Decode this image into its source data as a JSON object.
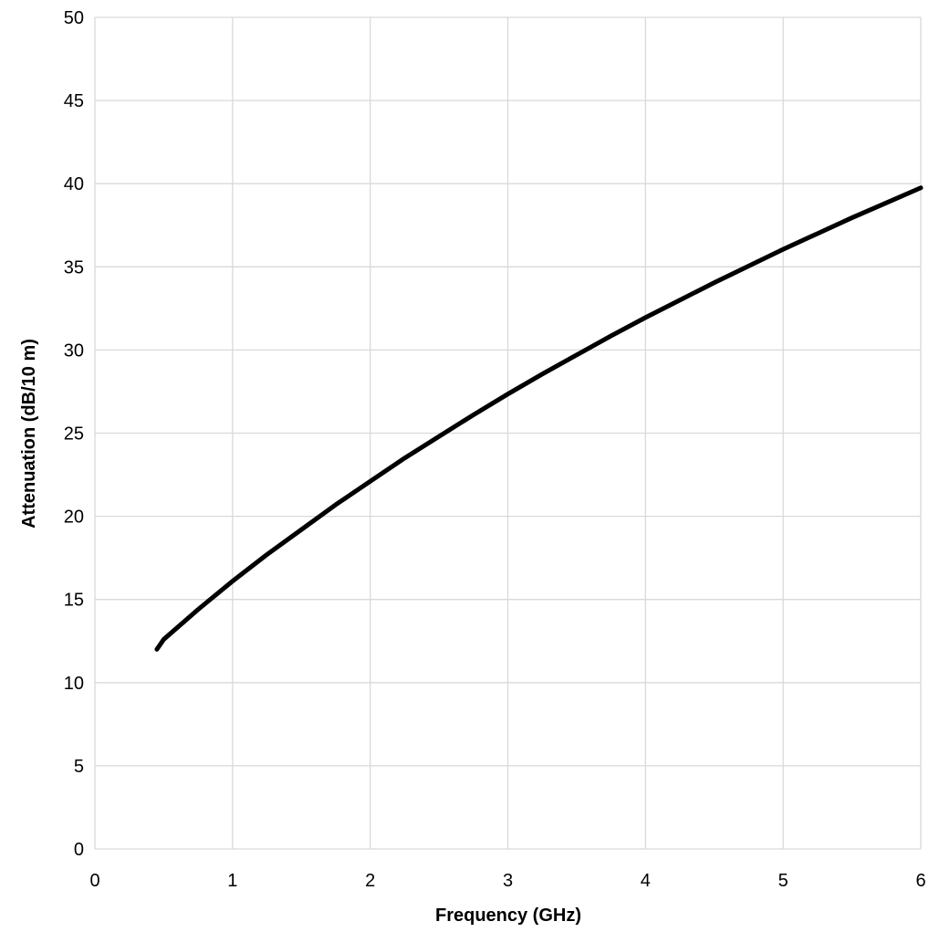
{
  "chart_data": {
    "type": "line",
    "title": "",
    "xlabel": "Frequency (GHz)",
    "ylabel": "Attenuation (dB/10 m)",
    "xlim": [
      0,
      6
    ],
    "ylim": [
      0,
      50
    ],
    "x_ticks": [
      0,
      1,
      2,
      3,
      4,
      5,
      6
    ],
    "x_tick_labels": [
      "0",
      "1",
      "2",
      "3",
      "4",
      "5",
      "6"
    ],
    "y_ticks": [
      0,
      5,
      10,
      15,
      20,
      25,
      30,
      35,
      40,
      45,
      50
    ],
    "y_tick_labels": [
      "0",
      "5",
      "10",
      "15",
      "20",
      "25",
      "30",
      "35",
      "40",
      "45",
      "50"
    ],
    "grid": true,
    "legend": "none",
    "series": [
      {
        "color": "#000000",
        "x": [
          0.45,
          0.5,
          0.75,
          1.0,
          1.25,
          1.5,
          1.75,
          2.0,
          2.25,
          2.5,
          2.75,
          3.0,
          3.25,
          3.5,
          3.75,
          4.0,
          4.25,
          4.5,
          4.75,
          5.0,
          5.25,
          5.5,
          5.75,
          6.0
        ],
        "y": [
          12.0,
          12.6,
          14.4,
          16.1,
          17.7,
          19.2,
          20.7,
          22.1,
          23.5,
          24.8,
          26.1,
          27.35,
          28.55,
          29.7,
          30.85,
          31.95,
          33.0,
          34.05,
          35.05,
          36.05,
          37.0,
          37.95,
          38.85,
          39.75
        ]
      }
    ]
  }
}
